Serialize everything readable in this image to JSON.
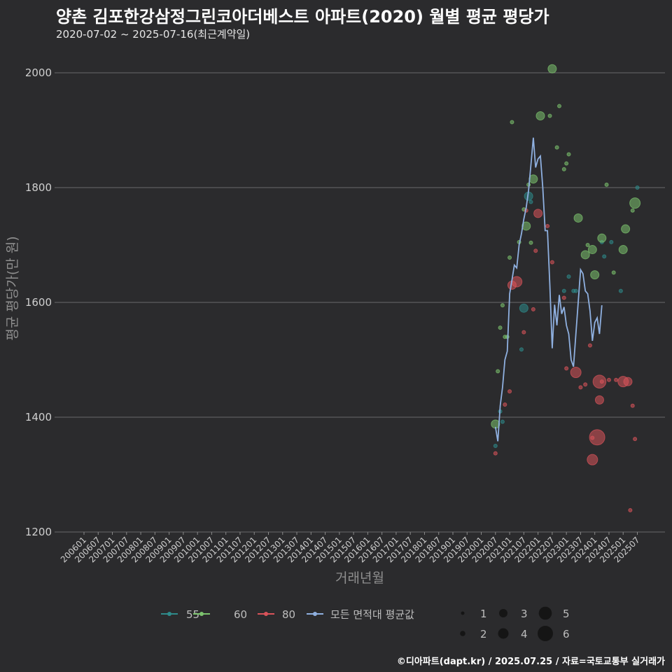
{
  "header": {
    "title": "양촌 김포한강삼정그린코아더베스트 아파트(2020) 월별 평균 평당가",
    "subtitle": "2020-07-02 ~ 2025-07-16(최근계약일)"
  },
  "footer": {
    "credit": "©디아파트(dapt.kr) / 2025.07.25 / 자료=국토교통부 실거래가"
  },
  "colors": {
    "s55": "#2e8b8b",
    "s60": "#7cc36e",
    "s80": "#d9535a",
    "avg": "#8fb0e0",
    "grid": "#6a6a6a",
    "bg": "#2b2b2d"
  },
  "chart_data": {
    "type": "scatter",
    "title": "양촌 김포한강삼정그린코아더베스트 아파트(2020) 월별 평균 평당가",
    "xlabel": "거래년월",
    "ylabel": "평균 평당가(만 원)",
    "ylim": [
      1200,
      2020
    ],
    "yticks": [
      1200,
      1400,
      1600,
      1800,
      2000
    ],
    "x_categories": [
      "200601",
      "200607",
      "200701",
      "200707",
      "200801",
      "200807",
      "200901",
      "200907",
      "201001",
      "201007",
      "201101",
      "201107",
      "201201",
      "201207",
      "201301",
      "201307",
      "201401",
      "201407",
      "201501",
      "201507",
      "201601",
      "201607",
      "201701",
      "201707",
      "201801",
      "201807",
      "201901",
      "201907",
      "202001",
      "202007",
      "202101",
      "202107",
      "202201",
      "202207",
      "202301",
      "202307",
      "202401",
      "202407",
      "202501",
      "202507"
    ],
    "legend_series": [
      {
        "key": "s55",
        "label": "55"
      },
      {
        "key": "s60",
        "label": "60"
      },
      {
        "key": "s80",
        "label": "80"
      },
      {
        "key": "avg",
        "label": "모든 면적대 평균값"
      }
    ],
    "size_legend": [
      1,
      2,
      3,
      4,
      5,
      6
    ],
    "series": [
      {
        "name": "55",
        "key": "s55",
        "points": [
          {
            "x": 202007,
            "y": 1350,
            "n": 1
          },
          {
            "x": 202009,
            "y": 1410,
            "n": 1
          },
          {
            "x": 202010,
            "y": 1392,
            "n": 1
          },
          {
            "x": 202106,
            "y": 1518,
            "n": 1
          },
          {
            "x": 202107,
            "y": 1590,
            "n": 3
          },
          {
            "x": 202109,
            "y": 1785,
            "n": 3
          },
          {
            "x": 202110,
            "y": 1775,
            "n": 1
          },
          {
            "x": 202212,
            "y": 1620,
            "n": 1
          },
          {
            "x": 202302,
            "y": 1645,
            "n": 1
          },
          {
            "x": 202304,
            "y": 1620,
            "n": 1
          },
          {
            "x": 202305,
            "y": 1620,
            "n": 1
          },
          {
            "x": 202404,
            "y": 1705,
            "n": 1
          },
          {
            "x": 202405,
            "y": 1680,
            "n": 1
          },
          {
            "x": 202408,
            "y": 1705,
            "n": 1
          },
          {
            "x": 202412,
            "y": 1620,
            "n": 1
          },
          {
            "x": 202507,
            "y": 1800,
            "n": 1
          }
        ]
      },
      {
        "name": "60",
        "key": "s60",
        "points": [
          {
            "x": 202007,
            "y": 1388,
            "n": 3
          },
          {
            "x": 202008,
            "y": 1480,
            "n": 1
          },
          {
            "x": 202009,
            "y": 1556,
            "n": 1
          },
          {
            "x": 202010,
            "y": 1595,
            "n": 1
          },
          {
            "x": 202011,
            "y": 1540,
            "n": 1
          },
          {
            "x": 202012,
            "y": 1540,
            "n": 1
          },
          {
            "x": 202101,
            "y": 1678,
            "n": 1
          },
          {
            "x": 202102,
            "y": 1914,
            "n": 1
          },
          {
            "x": 202105,
            "y": 1705,
            "n": 1
          },
          {
            "x": 202107,
            "y": 1762,
            "n": 1
          },
          {
            "x": 202108,
            "y": 1733,
            "n": 3
          },
          {
            "x": 202109,
            "y": 1805,
            "n": 1
          },
          {
            "x": 202110,
            "y": 1704,
            "n": 1
          },
          {
            "x": 202111,
            "y": 1815,
            "n": 3
          },
          {
            "x": 202202,
            "y": 1925,
            "n": 3
          },
          {
            "x": 202206,
            "y": 1925,
            "n": 1
          },
          {
            "x": 202207,
            "y": 2007,
            "n": 3
          },
          {
            "x": 202209,
            "y": 1870,
            "n": 1
          },
          {
            "x": 202210,
            "y": 1942,
            "n": 1
          },
          {
            "x": 202212,
            "y": 1832,
            "n": 1
          },
          {
            "x": 202301,
            "y": 1842,
            "n": 1
          },
          {
            "x": 202302,
            "y": 1858,
            "n": 1
          },
          {
            "x": 202306,
            "y": 1747,
            "n": 3
          },
          {
            "x": 202309,
            "y": 1683,
            "n": 3
          },
          {
            "x": 202310,
            "y": 1700,
            "n": 1
          },
          {
            "x": 202312,
            "y": 1692,
            "n": 3
          },
          {
            "x": 202401,
            "y": 1648,
            "n": 3
          },
          {
            "x": 202404,
            "y": 1712,
            "n": 3
          },
          {
            "x": 202406,
            "y": 1805,
            "n": 1
          },
          {
            "x": 202409,
            "y": 1652,
            "n": 1
          },
          {
            "x": 202501,
            "y": 1692,
            "n": 3
          },
          {
            "x": 202502,
            "y": 1728,
            "n": 3
          },
          {
            "x": 202505,
            "y": 1760,
            "n": 1
          },
          {
            "x": 202506,
            "y": 1773,
            "n": 4
          }
        ]
      },
      {
        "name": "80",
        "key": "s80",
        "points": [
          {
            "x": 202007,
            "y": 1337,
            "n": 1
          },
          {
            "x": 202011,
            "y": 1422,
            "n": 1
          },
          {
            "x": 202101,
            "y": 1445,
            "n": 1
          },
          {
            "x": 202102,
            "y": 1630,
            "n": 3
          },
          {
            "x": 202104,
            "y": 1636,
            "n": 4
          },
          {
            "x": 202107,
            "y": 1548,
            "n": 1
          },
          {
            "x": 202108,
            "y": 1760,
            "n": 1
          },
          {
            "x": 202111,
            "y": 1588,
            "n": 1
          },
          {
            "x": 202112,
            "y": 1690,
            "n": 1
          },
          {
            "x": 202201,
            "y": 1755,
            "n": 3
          },
          {
            "x": 202205,
            "y": 1733,
            "n": 1
          },
          {
            "x": 202207,
            "y": 1670,
            "n": 1
          },
          {
            "x": 202212,
            "y": 1608,
            "n": 1
          },
          {
            "x": 202301,
            "y": 1485,
            "n": 1
          },
          {
            "x": 202305,
            "y": 1478,
            "n": 4
          },
          {
            "x": 202307,
            "y": 1452,
            "n": 1
          },
          {
            "x": 202309,
            "y": 1457,
            "n": 1
          },
          {
            "x": 202311,
            "y": 1525,
            "n": 1
          },
          {
            "x": 202312,
            "y": 1364,
            "n": 1
          },
          {
            "x": 202312,
            "y": 1326,
            "n": 4
          },
          {
            "x": 202402,
            "y": 1365,
            "n": 6
          },
          {
            "x": 202403,
            "y": 1462,
            "n": 5
          },
          {
            "x": 202403,
            "y": 1430,
            "n": 3
          },
          {
            "x": 202404,
            "y": 1462,
            "n": 1
          },
          {
            "x": 202407,
            "y": 1465,
            "n": 1
          },
          {
            "x": 202410,
            "y": 1465,
            "n": 1
          },
          {
            "x": 202501,
            "y": 1462,
            "n": 4
          },
          {
            "x": 202503,
            "y": 1462,
            "n": 3
          },
          {
            "x": 202504,
            "y": 1238,
            "n": 1
          },
          {
            "x": 202505,
            "y": 1420,
            "n": 1
          },
          {
            "x": 202506,
            "y": 1362,
            "n": 1
          }
        ]
      },
      {
        "name": "모든 면적대 평균값",
        "key": "avg",
        "type": "line",
        "points": [
          {
            "x": 202007,
            "y": 1383
          },
          {
            "x": 202008,
            "y": 1358
          },
          {
            "x": 202009,
            "y": 1420
          },
          {
            "x": 202010,
            "y": 1452
          },
          {
            "x": 202011,
            "y": 1500
          },
          {
            "x": 202012,
            "y": 1515
          },
          {
            "x": 202101,
            "y": 1615
          },
          {
            "x": 202102,
            "y": 1640
          },
          {
            "x": 202103,
            "y": 1665
          },
          {
            "x": 202104,
            "y": 1660
          },
          {
            "x": 202105,
            "y": 1700
          },
          {
            "x": 202106,
            "y": 1720
          },
          {
            "x": 202107,
            "y": 1745
          },
          {
            "x": 202108,
            "y": 1765
          },
          {
            "x": 202109,
            "y": 1795
          },
          {
            "x": 202110,
            "y": 1840
          },
          {
            "x": 202111,
            "y": 1887
          },
          {
            "x": 202112,
            "y": 1835
          },
          {
            "x": 202201,
            "y": 1850
          },
          {
            "x": 202202,
            "y": 1855
          },
          {
            "x": 202203,
            "y": 1800
          },
          {
            "x": 202204,
            "y": 1725
          },
          {
            "x": 202205,
            "y": 1725
          },
          {
            "x": 202206,
            "y": 1630
          },
          {
            "x": 202207,
            "y": 1520
          },
          {
            "x": 202208,
            "y": 1596
          },
          {
            "x": 202209,
            "y": 1560
          },
          {
            "x": 202210,
            "y": 1613
          },
          {
            "x": 202211,
            "y": 1580
          },
          {
            "x": 202212,
            "y": 1592
          },
          {
            "x": 202301,
            "y": 1560
          },
          {
            "x": 202302,
            "y": 1545
          },
          {
            "x": 202303,
            "y": 1500
          },
          {
            "x": 202304,
            "y": 1488
          },
          {
            "x": 202305,
            "y": 1545
          },
          {
            "x": 202306,
            "y": 1600
          },
          {
            "x": 202307,
            "y": 1657
          },
          {
            "x": 202308,
            "y": 1650
          },
          {
            "x": 202309,
            "y": 1620
          },
          {
            "x": 202310,
            "y": 1615
          },
          {
            "x": 202311,
            "y": 1585
          },
          {
            "x": 202312,
            "y": 1533
          },
          {
            "x": 202401,
            "y": 1565
          },
          {
            "x": 202402,
            "y": 1573
          },
          {
            "x": 202403,
            "y": 1545
          },
          {
            "x": 202404,
            "y": 1595
          }
        ]
      }
    ]
  }
}
